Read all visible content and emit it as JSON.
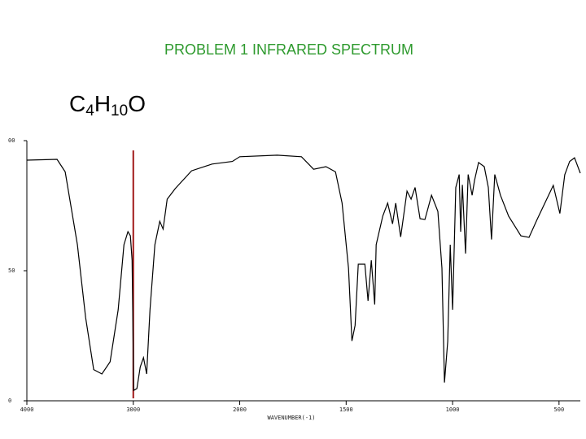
{
  "title": "PROBLEM 1 INFRARED SPECTRUM",
  "formula": [
    "C",
    "4",
    "H",
    "10",
    "O"
  ],
  "chart_data": {
    "type": "line",
    "xlabel": "WAVENUMBER(-1)",
    "xlim": [
      4000,
      400
    ],
    "x_scale_break": 2000,
    "x_scale_factor": 2,
    "xticks": [
      4000,
      3000,
      2000,
      1500,
      1000,
      500
    ],
    "ylim": [
      0,
      100
    ],
    "yticks": [
      0,
      50,
      {
        "value": 100,
        "label": "00"
      }
    ],
    "color": "#000000",
    "vline": {
      "x": 3000,
      "color": "#a01818"
    },
    "x": [
      4000,
      3716,
      3640,
      3525,
      3448,
      3372,
      3295,
      3218,
      3142,
      3088,
      3050,
      3027,
      3011,
      2996,
      2966,
      2935,
      2904,
      2874,
      2843,
      2797,
      2751,
      2720,
      2682,
      2605,
      2452,
      2260,
      2069,
      2000,
      1824,
      1710,
      1653,
      1595,
      1550,
      1519,
      1489,
      1473,
      1458,
      1443,
      1412,
      1397,
      1382,
      1366,
      1359,
      1328,
      1305,
      1282,
      1267,
      1244,
      1214,
      1195,
      1176,
      1153,
      1130,
      1099,
      1069,
      1050,
      1038,
      1023,
      1011,
      1000,
      985,
      969,
      962,
      954,
      939,
      927,
      908,
      897,
      878,
      851,
      832,
      817,
      802,
      775,
      737,
      679,
      641,
      603,
      527,
      496,
      473,
      450,
      427,
      400
    ],
    "values": [
      92.5,
      92.8,
      88,
      60,
      32,
      12,
      10.3,
      15,
      35,
      60,
      65,
      63.4,
      54,
      4,
      4.7,
      13,
      16.6,
      10.3,
      35,
      60,
      69,
      66,
      77.5,
      81.6,
      88.4,
      91,
      92,
      93.8,
      94.4,
      93.8,
      89,
      90,
      88,
      76,
      51,
      23,
      29,
      52.5,
      52.5,
      38.4,
      54,
      37,
      60,
      71,
      76,
      68,
      76,
      63,
      80.6,
      77.5,
      82,
      70,
      69.7,
      79,
      72.8,
      51,
      7,
      22.8,
      60,
      35,
      82,
      87,
      65,
      83,
      56.6,
      87,
      79,
      84.7,
      91.6,
      90,
      82,
      62,
      87,
      79,
      71,
      63.4,
      62.8,
      69.7,
      82.8,
      72,
      86.9,
      92,
      93.4,
      87.5
    ]
  }
}
